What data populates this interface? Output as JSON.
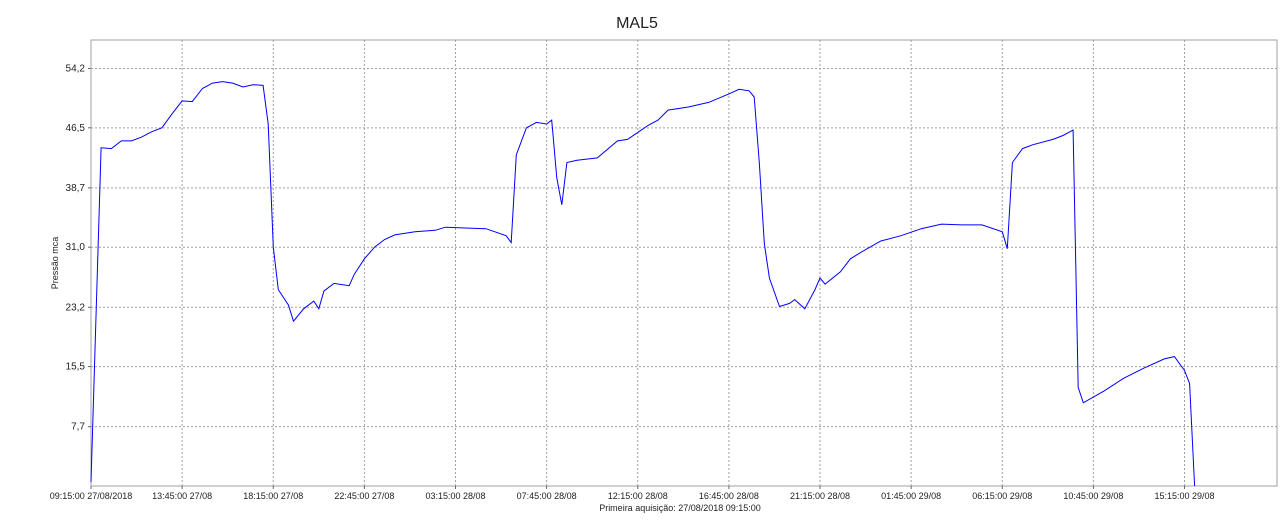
{
  "chart_data": {
    "type": "line",
    "title": "MAL5",
    "ylabel": "Pressão mca",
    "xlabel": "Primeira aquisição: 27/08/2018 09:15:00",
    "grid": true,
    "color": "#0000ff",
    "ylim": [
      0,
      57.9
    ],
    "yticks": [
      {
        "value": 7.7,
        "label": "7,7"
      },
      {
        "value": 15.5,
        "label": "15,5"
      },
      {
        "value": 23.2,
        "label": "23,2"
      },
      {
        "value": 31.0,
        "label": "31,0"
      },
      {
        "value": 38.7,
        "label": "38,7"
      },
      {
        "value": 46.5,
        "label": "46,5"
      },
      {
        "value": 54.2,
        "label": "54,2"
      }
    ],
    "xlim": [
      "2018-08-27T09:15",
      "2018-08-29T19:49"
    ],
    "xticks": [
      {
        "value": "2018-08-27T09:15",
        "label": "09:15:00 27/08/2018"
      },
      {
        "value": "2018-08-27T13:45",
        "label": "13:45:00 27/08"
      },
      {
        "value": "2018-08-27T18:15",
        "label": "18:15:00 27/08"
      },
      {
        "value": "2018-08-27T22:45",
        "label": "22:45:00 27/08"
      },
      {
        "value": "2018-08-28T03:15",
        "label": "03:15:00 28/08"
      },
      {
        "value": "2018-08-28T07:45",
        "label": "07:45:00 28/08"
      },
      {
        "value": "2018-08-28T12:15",
        "label": "12:15:00 28/08"
      },
      {
        "value": "2018-08-28T16:45",
        "label": "16:45:00 28/08"
      },
      {
        "value": "2018-08-28T21:15",
        "label": "21:15:00 28/08"
      },
      {
        "value": "2018-08-29T01:45",
        "label": "01:45:00 29/08"
      },
      {
        "value": "2018-08-29T06:15",
        "label": "06:15:00 29/08"
      },
      {
        "value": "2018-08-29T10:45",
        "label": "10:45:00 29/08"
      },
      {
        "value": "2018-08-29T15:15",
        "label": "15:15:00 29/08"
      }
    ],
    "x": [
      "2018-08-27T09:15",
      "2018-08-27T09:45",
      "2018-08-27T10:15",
      "2018-08-27T10:45",
      "2018-08-27T11:15",
      "2018-08-27T11:45",
      "2018-08-27T12:15",
      "2018-08-27T12:45",
      "2018-08-27T13:15",
      "2018-08-27T13:45",
      "2018-08-27T14:15",
      "2018-08-27T14:45",
      "2018-08-27T15:15",
      "2018-08-27T15:45",
      "2018-08-27T16:15",
      "2018-08-27T16:45",
      "2018-08-27T17:15",
      "2018-08-27T17:45",
      "2018-08-27T18:00",
      "2018-08-27T18:15",
      "2018-08-27T18:30",
      "2018-08-27T19:00",
      "2018-08-27T19:15",
      "2018-08-27T19:45",
      "2018-08-27T20:15",
      "2018-08-27T20:30",
      "2018-08-27T20:45",
      "2018-08-27T21:15",
      "2018-08-27T22:00",
      "2018-08-27T22:15",
      "2018-08-27T22:45",
      "2018-08-27T23:15",
      "2018-08-27T23:45",
      "2018-08-28T00:15",
      "2018-08-28T01:15",
      "2018-08-28T02:15",
      "2018-08-28T02:45",
      "2018-08-28T03:45",
      "2018-08-28T04:45",
      "2018-08-28T05:45",
      "2018-08-28T06:00",
      "2018-08-28T06:15",
      "2018-08-28T06:45",
      "2018-08-28T07:15",
      "2018-08-28T07:45",
      "2018-08-28T08:00",
      "2018-08-28T08:15",
      "2018-08-28T08:30",
      "2018-08-28T08:45",
      "2018-08-28T09:15",
      "2018-08-28T10:15",
      "2018-08-28T11:15",
      "2018-08-28T11:45",
      "2018-08-28T12:45",
      "2018-08-28T13:15",
      "2018-08-28T13:45",
      "2018-08-28T14:45",
      "2018-08-28T15:45",
      "2018-08-28T16:45",
      "2018-08-28T17:15",
      "2018-08-28T17:45",
      "2018-08-28T18:00",
      "2018-08-28T18:15",
      "2018-08-28T18:30",
      "2018-08-28T18:45",
      "2018-08-28T19:15",
      "2018-08-28T19:45",
      "2018-08-28T20:00",
      "2018-08-28T20:30",
      "2018-08-28T21:00",
      "2018-08-28T21:15",
      "2018-08-28T21:30",
      "2018-08-28T22:15",
      "2018-08-28T22:45",
      "2018-08-28T23:15",
      "2018-08-29T00:15",
      "2018-08-29T01:15",
      "2018-08-29T02:15",
      "2018-08-29T03:15",
      "2018-08-29T04:15",
      "2018-08-29T05:15",
      "2018-08-29T06:15",
      "2018-08-29T06:30",
      "2018-08-29T06:45",
      "2018-08-29T07:15",
      "2018-08-29T07:45",
      "2018-08-29T08:45",
      "2018-08-29T09:15",
      "2018-08-29T09:45",
      "2018-08-29T10:00",
      "2018-08-29T10:15",
      "2018-08-29T11:15",
      "2018-08-29T12:15",
      "2018-08-29T13:15",
      "2018-08-29T14:15",
      "2018-08-29T14:45",
      "2018-08-29T15:15",
      "2018-08-29T15:30",
      "2018-08-29T15:45"
    ],
    "values": [
      0.5,
      43.9,
      43.8,
      44.8,
      44.8,
      45.3,
      46.0,
      46.5,
      48.3,
      50.0,
      49.9,
      51.6,
      52.3,
      52.5,
      52.3,
      51.8,
      52.1,
      52.0,
      47.0,
      31.0,
      25.5,
      23.5,
      21.4,
      23.0,
      24.0,
      23.0,
      25.3,
      26.3,
      26.0,
      27.5,
      29.5,
      31.0,
      32.0,
      32.6,
      33.0,
      33.2,
      33.6,
      33.5,
      33.4,
      32.5,
      31.6,
      43.0,
      46.5,
      47.2,
      47.0,
      47.5,
      40.0,
      36.5,
      42.0,
      42.3,
      42.6,
      44.8,
      45.0,
      46.8,
      47.5,
      48.8,
      49.2,
      49.8,
      50.9,
      51.5,
      51.3,
      50.5,
      42.0,
      31.5,
      27.0,
      23.3,
      23.7,
      24.2,
      23.0,
      25.5,
      27.0,
      26.2,
      27.8,
      29.5,
      30.3,
      31.8,
      32.5,
      33.4,
      34.0,
      33.9,
      33.9,
      33.0,
      30.8,
      42.0,
      43.8,
      44.3,
      45.0,
      45.5,
      46.2,
      12.8,
      10.8,
      12.3,
      14.0,
      15.3,
      16.5,
      16.8,
      15.0,
      13.3,
      0
    ]
  }
}
